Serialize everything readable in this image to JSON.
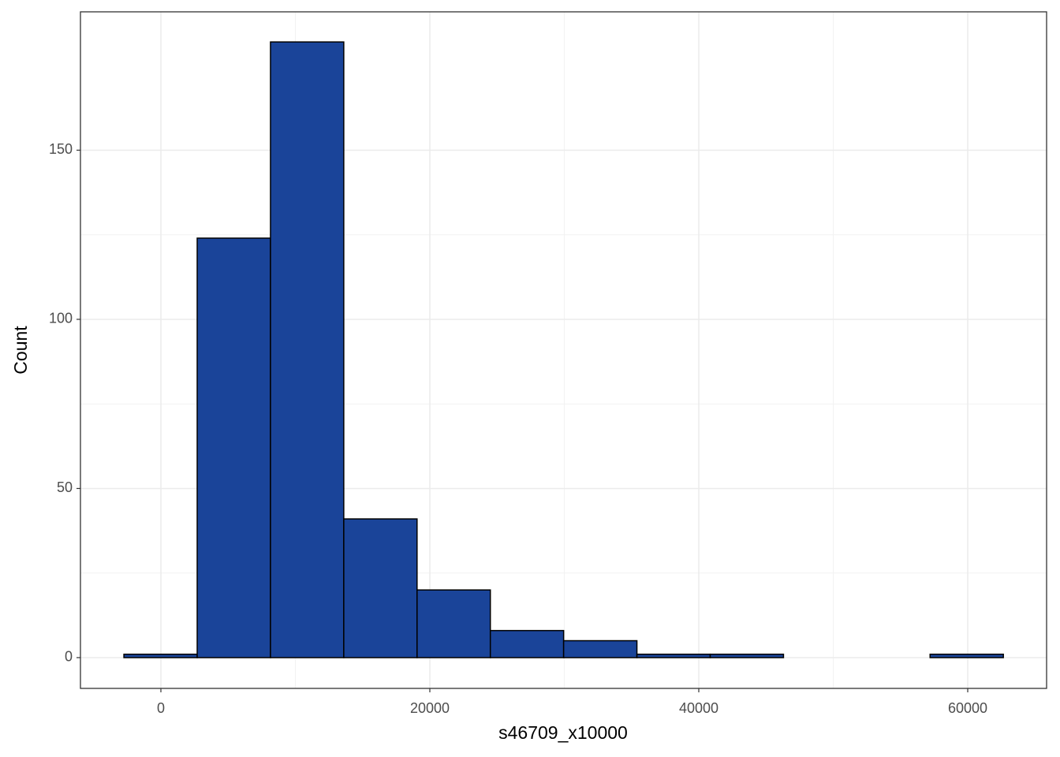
{
  "chart_data": {
    "type": "histogram",
    "x_label": "s46709_x10000",
    "y_label": "Count",
    "bins": [
      -2750,
      2700,
      8150,
      13600,
      19050,
      24500,
      29950,
      35400,
      40850,
      46300,
      51750,
      57200,
      62650
    ],
    "values": [
      1,
      124,
      182,
      41,
      20,
      8,
      5,
      1,
      1,
      0,
      0,
      1
    ],
    "color": "#1a4499",
    "edge_color": "#000000",
    "xlim": [
      -5982,
      65865
    ],
    "ylim": [
      -9.1,
      190.9
    ],
    "xticks": [
      0,
      20000,
      40000,
      60000
    ],
    "yticks": [
      0,
      50,
      100,
      150
    ],
    "grid": true
  }
}
